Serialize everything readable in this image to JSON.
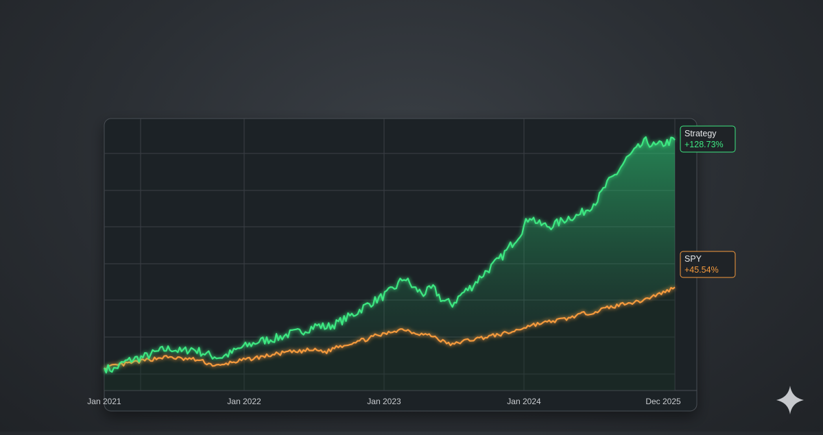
{
  "chart_data": {
    "type": "line",
    "x_ticks": [
      "Jan 2021",
      "Jan 2022",
      "Jan 2023",
      "Jan 2024",
      "Dec 2025"
    ],
    "series": [
      {
        "name": "Strategy",
        "end_label": "+128.73%",
        "color": "#3ee882",
        "values": [
          [
            "2021-01",
            0
          ],
          [
            "2021-02",
            -1
          ],
          [
            "2021-03",
            3
          ],
          [
            "2021-04",
            5
          ],
          [
            "2021-05",
            6
          ],
          [
            "2021-06",
            8
          ],
          [
            "2021-07",
            10
          ],
          [
            "2021-08",
            11
          ],
          [
            "2021-09",
            9
          ],
          [
            "2021-10",
            11
          ],
          [
            "2021-11",
            9
          ],
          [
            "2021-12",
            7
          ],
          [
            "2022-01",
            6
          ],
          [
            "2022-02",
            8
          ],
          [
            "2022-03",
            11
          ],
          [
            "2022-04",
            13
          ],
          [
            "2022-05",
            15
          ],
          [
            "2022-06",
            16
          ],
          [
            "2022-07",
            17
          ],
          [
            "2022-08",
            19
          ],
          [
            "2022-09",
            20
          ],
          [
            "2022-10",
            22
          ],
          [
            "2022-11",
            24
          ],
          [
            "2022-12",
            23
          ],
          [
            "2023-01",
            25
          ],
          [
            "2023-02",
            28
          ],
          [
            "2023-03",
            31
          ],
          [
            "2023-04",
            35
          ],
          [
            "2023-05",
            38
          ],
          [
            "2023-06",
            41
          ],
          [
            "2023-07",
            45
          ],
          [
            "2023-08",
            51
          ],
          [
            "2023-09",
            45
          ],
          [
            "2023-10",
            42
          ],
          [
            "2023-11",
            45
          ],
          [
            "2023-12",
            38
          ],
          [
            "2024-01",
            36
          ],
          [
            "2024-02",
            42
          ],
          [
            "2024-03",
            46
          ],
          [
            "2024-04",
            52
          ],
          [
            "2024-05",
            57
          ],
          [
            "2024-06",
            62
          ],
          [
            "2024-07",
            69
          ],
          [
            "2024-08",
            76
          ],
          [
            "2024-09",
            86
          ],
          [
            "2024-10",
            81
          ],
          [
            "2024-11",
            80
          ],
          [
            "2024-12",
            82
          ],
          [
            "2025-01",
            85
          ],
          [
            "2025-02",
            86
          ],
          [
            "2025-03",
            90
          ],
          [
            "2025-04",
            95
          ],
          [
            "2025-05",
            104
          ],
          [
            "2025-06",
            110
          ],
          [
            "2025-07",
            118
          ],
          [
            "2025-08",
            123
          ],
          [
            "2025-09",
            128
          ],
          [
            "2025-10",
            125
          ],
          [
            "2025-11",
            127
          ],
          [
            "2025-12",
            128.73
          ]
        ]
      },
      {
        "name": "SPY",
        "end_label": "+45.54%",
        "color": "#f59a3d",
        "values": [
          [
            "2021-01",
            0
          ],
          [
            "2021-02",
            1
          ],
          [
            "2021-03",
            2
          ],
          [
            "2021-04",
            3
          ],
          [
            "2021-05",
            4
          ],
          [
            "2021-06",
            5
          ],
          [
            "2021-07",
            6
          ],
          [
            "2021-08",
            6
          ],
          [
            "2021-09",
            5
          ],
          [
            "2021-10",
            5
          ],
          [
            "2021-11",
            4
          ],
          [
            "2021-12",
            2
          ],
          [
            "2022-01",
            1
          ],
          [
            "2022-02",
            3
          ],
          [
            "2022-03",
            4
          ],
          [
            "2022-04",
            5
          ],
          [
            "2022-05",
            6
          ],
          [
            "2022-06",
            7
          ],
          [
            "2022-07",
            8
          ],
          [
            "2022-08",
            9
          ],
          [
            "2022-09",
            9
          ],
          [
            "2022-10",
            10
          ],
          [
            "2022-11",
            10
          ],
          [
            "2022-12",
            9
          ],
          [
            "2023-01",
            12
          ],
          [
            "2023-02",
            13
          ],
          [
            "2023-03",
            15
          ],
          [
            "2023-04",
            16
          ],
          [
            "2023-05",
            18
          ],
          [
            "2023-06",
            19
          ],
          [
            "2023-07",
            21
          ],
          [
            "2023-08",
            22
          ],
          [
            "2023-09",
            20
          ],
          [
            "2023-10",
            19
          ],
          [
            "2023-11",
            18
          ],
          [
            "2023-12",
            15
          ],
          [
            "2024-01",
            13
          ],
          [
            "2024-02",
            15
          ],
          [
            "2024-03",
            16
          ],
          [
            "2024-04",
            17
          ],
          [
            "2024-05",
            18
          ],
          [
            "2024-06",
            19
          ],
          [
            "2024-07",
            20
          ],
          [
            "2024-08",
            22
          ],
          [
            "2024-09",
            24
          ],
          [
            "2024-10",
            25
          ],
          [
            "2024-11",
            26
          ],
          [
            "2024-12",
            27
          ],
          [
            "2025-01",
            28
          ],
          [
            "2025-02",
            30
          ],
          [
            "2025-03",
            31
          ],
          [
            "2025-04",
            32
          ],
          [
            "2025-05",
            34
          ],
          [
            "2025-06",
            35
          ],
          [
            "2025-07",
            37
          ],
          [
            "2025-08",
            37
          ],
          [
            "2025-09",
            39
          ],
          [
            "2025-10",
            41
          ],
          [
            "2025-11",
            43
          ],
          [
            "2025-12",
            45.54
          ]
        ]
      }
    ],
    "ylim": [
      -5,
      135
    ],
    "xlim": [
      "2021-01",
      "2025-12"
    ],
    "grid": true,
    "fill": "area between Strategy and SPY lines",
    "legend": "end-of-line labels, right"
  },
  "watermark_icon": "sparkle-icon"
}
